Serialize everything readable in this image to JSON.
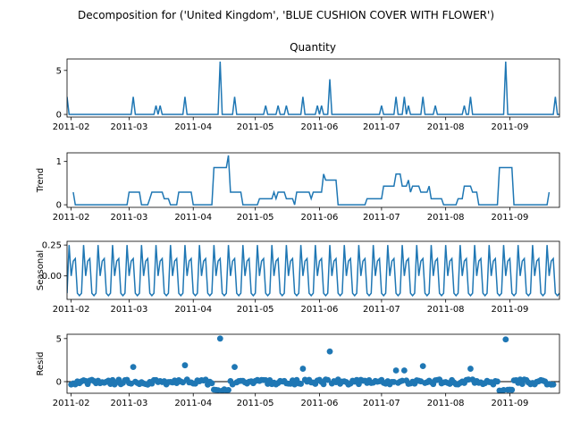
{
  "suptitle": "Decomposition for ('United Kingdom', 'BLUE CUSHION COVER WITH FLOWER')",
  "line_color": "#1f77b4",
  "chart_data": [
    {
      "type": "line",
      "title": "Quantity",
      "ylabel": "",
      "x_range": [
        "2011-01-30",
        "2011-09-25"
      ],
      "ylim": [
        -0.3,
        6.3
      ],
      "yticks": [
        0,
        5
      ],
      "xticks": [
        "2011-02",
        "2011-03",
        "2011-04",
        "2011-05",
        "2011-06",
        "2011-07",
        "2011-08",
        "2011-09"
      ],
      "points": [
        {
          "x": "2011-01-30",
          "y": 2
        },
        {
          "x": "2011-03-03",
          "y": 2
        },
        {
          "x": "2011-03-14",
          "y": 1
        },
        {
          "x": "2011-03-16",
          "y": 1
        },
        {
          "x": "2011-03-28",
          "y": 2
        },
        {
          "x": "2011-04-14",
          "y": 6
        },
        {
          "x": "2011-04-21",
          "y": 2
        },
        {
          "x": "2011-05-06",
          "y": 1
        },
        {
          "x": "2011-05-12",
          "y": 1
        },
        {
          "x": "2011-05-16",
          "y": 1
        },
        {
          "x": "2011-05-24",
          "y": 2
        },
        {
          "x": "2011-05-31",
          "y": 1
        },
        {
          "x": "2011-06-02",
          "y": 1
        },
        {
          "x": "2011-06-06",
          "y": 4
        },
        {
          "x": "2011-07-01",
          "y": 1
        },
        {
          "x": "2011-07-08",
          "y": 2
        },
        {
          "x": "2011-07-12",
          "y": 2
        },
        {
          "x": "2011-07-14",
          "y": 1
        },
        {
          "x": "2011-07-21",
          "y": 2
        },
        {
          "x": "2011-07-27",
          "y": 1
        },
        {
          "x": "2011-08-10",
          "y": 1
        },
        {
          "x": "2011-08-13",
          "y": 2
        },
        {
          "x": "2011-08-30",
          "y": 6
        },
        {
          "x": "2011-09-23",
          "y": 2
        }
      ]
    },
    {
      "type": "line",
      "title": "",
      "ylabel": "Trend",
      "x_range": [
        "2011-01-30",
        "2011-09-25"
      ],
      "ylim": [
        -0.06,
        1.2
      ],
      "yticks": [
        0,
        1
      ],
      "xticks": [
        "2011-02",
        "2011-03",
        "2011-04",
        "2011-05",
        "2011-06",
        "2011-07",
        "2011-08",
        "2011-09"
      ],
      "points": [
        {
          "x": "2011-02-02",
          "y": 0.29
        },
        {
          "x": "2011-02-03",
          "y": 0.0
        },
        {
          "x": "2011-02-28",
          "y": 0.0
        },
        {
          "x": "2011-02-29",
          "y": 0.29
        },
        {
          "x": "2011-03-06",
          "y": 0.29
        },
        {
          "x": "2011-03-07",
          "y": 0.0
        },
        {
          "x": "2011-03-10",
          "y": 0.0
        },
        {
          "x": "2011-03-11",
          "y": 0.14
        },
        {
          "x": "2011-03-12",
          "y": 0.29
        },
        {
          "x": "2011-03-17",
          "y": 0.29
        },
        {
          "x": "2011-03-18",
          "y": 0.14
        },
        {
          "x": "2011-03-20",
          "y": 0.14
        },
        {
          "x": "2011-03-21",
          "y": 0.0
        },
        {
          "x": "2011-03-24",
          "y": 0.0
        },
        {
          "x": "2011-03-25",
          "y": 0.29
        },
        {
          "x": "2011-03-31",
          "y": 0.29
        },
        {
          "x": "2011-04-01",
          "y": 0.0
        },
        {
          "x": "2011-04-10",
          "y": 0.0
        },
        {
          "x": "2011-04-11",
          "y": 0.86
        },
        {
          "x": "2011-04-17",
          "y": 0.86
        },
        {
          "x": "2011-04-18",
          "y": 1.14
        },
        {
          "x": "2011-04-19",
          "y": 0.29
        },
        {
          "x": "2011-04-24",
          "y": 0.29
        },
        {
          "x": "2011-04-25",
          "y": 0.0
        },
        {
          "x": "2011-05-02",
          "y": 0.0
        },
        {
          "x": "2011-05-03",
          "y": 0.14
        },
        {
          "x": "2011-05-09",
          "y": 0.14
        },
        {
          "x": "2011-05-10",
          "y": 0.29
        },
        {
          "x": "2011-05-11",
          "y": 0.14
        },
        {
          "x": "2011-05-12",
          "y": 0.29
        },
        {
          "x": "2011-05-15",
          "y": 0.29
        },
        {
          "x": "2011-05-16",
          "y": 0.14
        },
        {
          "x": "2011-05-19",
          "y": 0.14
        },
        {
          "x": "2011-05-20",
          "y": 0.0
        },
        {
          "x": "2011-05-21",
          "y": 0.29
        },
        {
          "x": "2011-05-27",
          "y": 0.29
        },
        {
          "x": "2011-05-28",
          "y": 0.14
        },
        {
          "x": "2011-05-29",
          "y": 0.29
        },
        {
          "x": "2011-06-02",
          "y": 0.29
        },
        {
          "x": "2011-06-03",
          "y": 0.71
        },
        {
          "x": "2011-06-04",
          "y": 0.57
        },
        {
          "x": "2011-06-09",
          "y": 0.57
        },
        {
          "x": "2011-06-10",
          "y": 0.0
        },
        {
          "x": "2011-06-23",
          "y": 0.0
        },
        {
          "x": "2011-06-24",
          "y": 0.14
        },
        {
          "x": "2011-07-01",
          "y": 0.14
        },
        {
          "x": "2011-07-02",
          "y": 0.43
        },
        {
          "x": "2011-07-07",
          "y": 0.43
        },
        {
          "x": "2011-07-08",
          "y": 0.71
        },
        {
          "x": "2011-07-10",
          "y": 0.71
        },
        {
          "x": "2011-07-11",
          "y": 0.43
        },
        {
          "x": "2011-07-13",
          "y": 0.43
        },
        {
          "x": "2011-07-14",
          "y": 0.57
        },
        {
          "x": "2011-07-15",
          "y": 0.29
        },
        {
          "x": "2011-07-16",
          "y": 0.43
        },
        {
          "x": "2011-07-19",
          "y": 0.43
        },
        {
          "x": "2011-07-20",
          "y": 0.29
        },
        {
          "x": "2011-07-23",
          "y": 0.29
        },
        {
          "x": "2011-07-24",
          "y": 0.43
        },
        {
          "x": "2011-07-25",
          "y": 0.14
        },
        {
          "x": "2011-07-30",
          "y": 0.14
        },
        {
          "x": "2011-07-31",
          "y": 0.0
        },
        {
          "x": "2011-08-06",
          "y": 0.0
        },
        {
          "x": "2011-08-07",
          "y": 0.14
        },
        {
          "x": "2011-08-09",
          "y": 0.14
        },
        {
          "x": "2011-08-10",
          "y": 0.43
        },
        {
          "x": "2011-08-13",
          "y": 0.43
        },
        {
          "x": "2011-08-14",
          "y": 0.29
        },
        {
          "x": "2011-08-16",
          "y": 0.29
        },
        {
          "x": "2011-08-17",
          "y": 0.0
        },
        {
          "x": "2011-08-26",
          "y": 0.0
        },
        {
          "x": "2011-08-27",
          "y": 0.86
        },
        {
          "x": "2011-09-02",
          "y": 0.86
        },
        {
          "x": "2011-09-03",
          "y": 0.0
        },
        {
          "x": "2011-09-19",
          "y": 0.0
        },
        {
          "x": "2011-09-20",
          "y": 0.29
        }
      ]
    },
    {
      "type": "line",
      "title": "",
      "ylabel": "Seasonal",
      "x_range": [
        "2011-01-30",
        "2011-09-25"
      ],
      "ylim": [
        -0.19,
        0.28
      ],
      "yticks": [
        -0.0,
        0.25
      ],
      "ytick_labels": [
        "0.00",
        "0.25"
      ],
      "xticks": [
        "2011-02",
        "2011-03",
        "2011-04",
        "2011-05",
        "2011-06",
        "2011-07",
        "2011-08",
        "2011-09"
      ],
      "period_start": "2011-01-30",
      "weekly_pattern": [
        -0.14,
        0.25,
        0.0,
        0.12,
        0.14,
        -0.14,
        -0.16
      ]
    },
    {
      "type": "scatter",
      "title": "",
      "ylabel": "Resid",
      "x_range": [
        "2011-01-30",
        "2011-09-25"
      ],
      "ylim": [
        -1.35,
        5.5
      ],
      "yticks": [
        0,
        5
      ],
      "xticks": [
        "2011-02",
        "2011-03",
        "2011-04",
        "2011-05",
        "2011-06",
        "2011-07",
        "2011-08",
        "2011-09"
      ],
      "zero_line": true,
      "baseline_points": "all dates from 2011-02-01 to 2011-09-22 with small residuals",
      "highlight_points": [
        {
          "x": "2011-03-03",
          "y": 1.7
        },
        {
          "x": "2011-03-28",
          "y": 1.9
        },
        {
          "x": "2011-04-14",
          "y": 5.0
        },
        {
          "x": "2011-04-21",
          "y": 1.7
        },
        {
          "x": "2011-05-24",
          "y": 1.5
        },
        {
          "x": "2011-06-06",
          "y": 3.5
        },
        {
          "x": "2011-07-08",
          "y": 1.3
        },
        {
          "x": "2011-07-12",
          "y": 1.3
        },
        {
          "x": "2011-07-21",
          "y": 1.8
        },
        {
          "x": "2011-08-13",
          "y": 1.5
        },
        {
          "x": "2011-08-30",
          "y": 4.9
        }
      ]
    }
  ]
}
